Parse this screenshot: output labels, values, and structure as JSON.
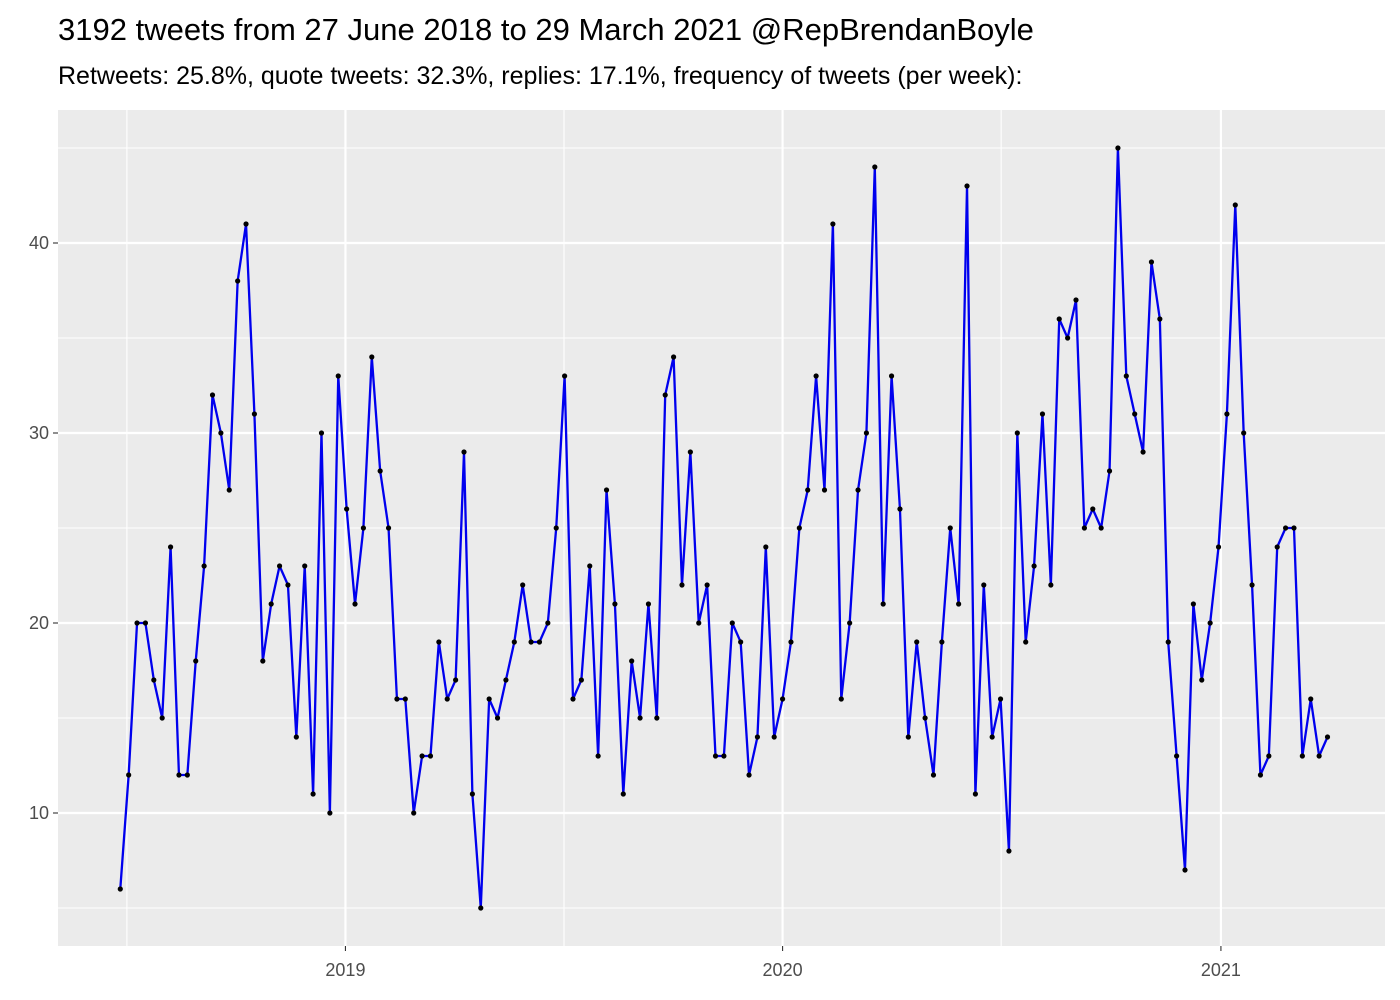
{
  "chart_data": {
    "type": "line",
    "title": "3192 tweets from 27 June 2018 to 29 March 2021 @RepBrendanBoyle",
    "subtitle": "Retweets: 25.8%, quote tweets: 32.3%, replies: 17.1%, frequency of tweets (per week):",
    "xlabel": "",
    "ylabel": "",
    "x_start_date": "2018-06-27",
    "x_step_days": 7,
    "x_ticks": [
      {
        "label": "2019",
        "date": "2019-01-01"
      },
      {
        "label": "2020",
        "date": "2020-01-01"
      },
      {
        "label": "2021",
        "date": "2021-01-01"
      }
    ],
    "y_ticks": [
      10,
      20,
      30,
      40
    ],
    "ylim": [
      3.0,
      47.0
    ],
    "xlim_dates": [
      "2018-05-06",
      "2021-05-18"
    ],
    "grid": true,
    "line_color": "#0000ee",
    "point_color": "#000000",
    "panel_color": "#ebebeb",
    "series": [
      {
        "values": [
          6,
          12,
          20,
          20,
          17,
          15,
          24,
          12,
          12,
          18,
          23,
          32,
          30,
          27,
          38,
          41,
          31,
          18,
          21,
          23,
          22,
          14,
          23,
          11,
          30,
          10,
          33,
          26,
          21,
          25,
          34,
          28,
          25,
          16,
          16,
          10,
          13,
          13,
          19,
          16,
          17,
          29,
          11,
          5,
          16,
          15,
          17,
          19,
          22,
          19,
          19,
          20,
          25,
          33,
          16,
          17,
          23,
          13,
          27,
          21,
          11,
          18,
          15,
          21,
          15,
          32,
          34,
          22,
          29,
          20,
          22,
          13,
          13,
          20,
          19,
          12,
          14,
          24,
          14,
          16,
          19,
          25,
          27,
          33,
          27,
          41,
          16,
          20,
          27,
          30,
          44,
          21,
          33,
          26,
          14,
          19,
          15,
          12,
          19,
          25,
          21,
          43,
          11,
          22,
          14,
          16,
          8,
          30,
          19,
          23,
          31,
          22,
          36,
          35,
          37,
          25,
          26,
          25,
          28,
          45,
          33,
          31,
          29,
          39,
          36,
          19,
          13,
          7,
          21,
          17,
          20,
          24,
          31,
          42,
          30,
          22,
          12,
          13,
          24,
          25,
          25,
          13,
          16,
          13,
          14
        ]
      }
    ]
  }
}
